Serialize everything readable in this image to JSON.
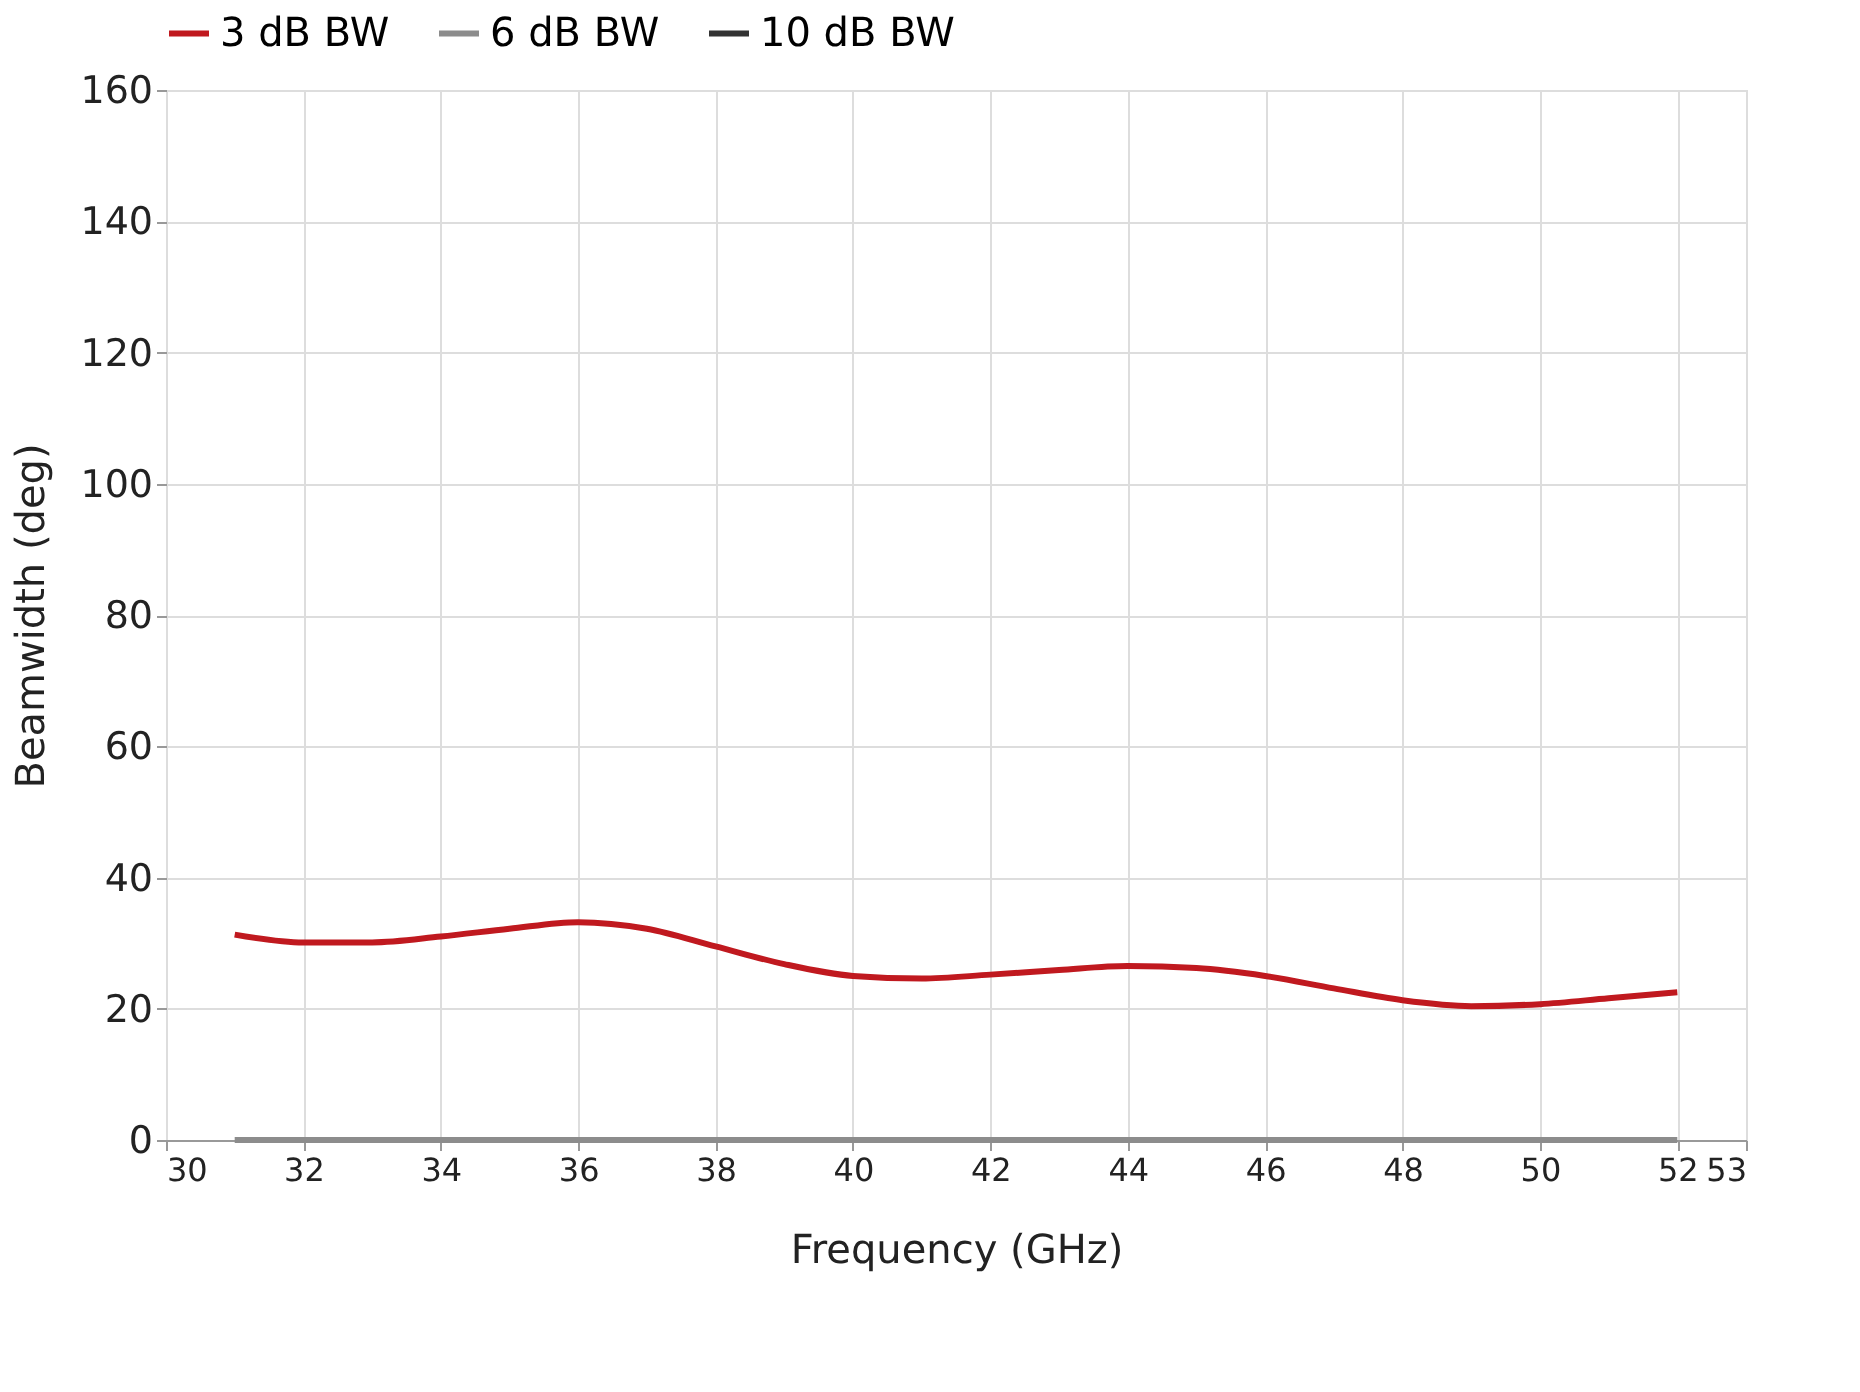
{
  "chart_data": {
    "type": "line",
    "xlabel": "Frequency (GHz)",
    "ylabel": "Beamwidth (deg)",
    "x": [
      31,
      32,
      33,
      34,
      35,
      36,
      37,
      38,
      39,
      40,
      41,
      42,
      43,
      44,
      45,
      46,
      47,
      48,
      49,
      50,
      51,
      52
    ],
    "series": [
      {
        "name": "3 dB BW",
        "color": "#c0191f",
        "values": [
          31.3,
          30.1,
          30.1,
          31,
          32.2,
          33.2,
          32.2,
          29.5,
          26.8,
          25,
          24.6,
          25.2,
          25.9,
          26.5,
          26.2,
          25,
          23.1,
          21.3,
          20.4,
          20.7,
          21.6,
          22.5
        ]
      },
      {
        "name": "6 dB BW",
        "color": "#8c8c8c",
        "values": [
          0,
          0,
          0,
          0,
          0,
          0,
          0,
          0,
          0,
          0,
          0,
          0,
          0,
          0,
          0,
          0,
          0,
          0,
          0,
          0,
          0,
          0
        ]
      },
      {
        "name": "10 dB BW",
        "color": "#333333",
        "values": [
          null,
          null,
          null,
          null,
          null,
          null,
          null,
          null,
          null,
          null,
          null,
          null,
          null,
          null,
          null,
          null,
          null,
          null,
          null,
          null,
          null,
          null
        ]
      }
    ],
    "xlim": [
      30,
      53
    ],
    "xticks": [
      30,
      32,
      34,
      36,
      38,
      40,
      42,
      44,
      46,
      48,
      50,
      52,
      53
    ],
    "ylim": [
      0,
      160
    ],
    "yticks": [
      0,
      20,
      40,
      60,
      80,
      100,
      120,
      140,
      160
    ],
    "grid": true,
    "legend": "top",
    "line_style": "solid",
    "marker": "none"
  }
}
